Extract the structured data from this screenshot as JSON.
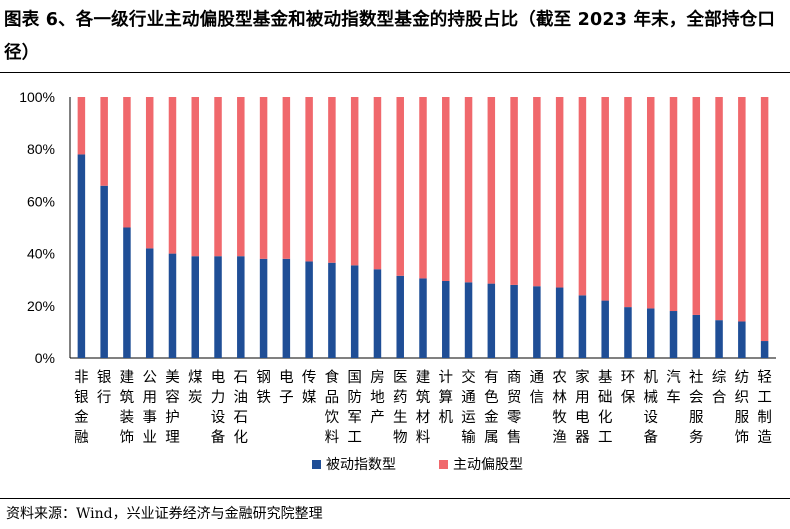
{
  "title": "图表 6、各一级行业主动偏股型基金和被动指数型基金的持股占比（截至 2023 年末，全部持仓口径）",
  "source": "资料来源：Wind，兴业证券经济与金融研究院整理",
  "colors": {
    "passive": "#1f4e96",
    "active": "#f0686c"
  },
  "chart_data": {
    "type": "bar",
    "stacked": true,
    "title": "各一级行业主动偏股型基金和被动指数型基金的持股占比（截至 2023 年末，全部持仓口径）",
    "xlabel": "",
    "ylabel": "",
    "ylim": [
      0,
      100
    ],
    "yticks": [
      "0%",
      "20%",
      "40%",
      "60%",
      "80%",
      "100%"
    ],
    "legend_position": "bottom",
    "categories": [
      "非银金融",
      "银行",
      "建筑装饰",
      "公用事业",
      "美容护理",
      "煤炭",
      "电力设备",
      "石油石化",
      "钢铁",
      "电子",
      "传媒",
      "食品饮料",
      "国防军工",
      "房地产",
      "医药生物",
      "建筑材料",
      "计算机",
      "交通运输",
      "有色金属",
      "商贸零售",
      "通信",
      "农林牧渔",
      "家用电器",
      "基础化工",
      "环保",
      "机械设备",
      "汽车",
      "社会服务",
      "综合",
      "纺织服饰",
      "轻工制造"
    ],
    "series": [
      {
        "name": "被动指数型",
        "values": [
          78,
          66,
          50,
          42,
          40,
          39,
          39,
          39,
          38,
          38,
          37,
          36.5,
          35.5,
          34,
          31.5,
          30.5,
          29.5,
          29,
          28.5,
          28,
          27.5,
          27,
          24,
          22,
          19.5,
          19,
          18,
          16.5,
          14.5,
          14,
          6.5
        ]
      },
      {
        "name": "主动偏股型",
        "values": [
          22,
          34,
          50,
          58,
          60,
          61,
          61,
          61,
          62,
          62,
          63,
          63.5,
          64.5,
          66,
          68.5,
          69.5,
          70.5,
          71,
          71.5,
          72,
          72.5,
          73,
          76,
          78,
          80.5,
          81,
          82,
          83.5,
          85.5,
          86,
          93.5
        ]
      }
    ]
  }
}
